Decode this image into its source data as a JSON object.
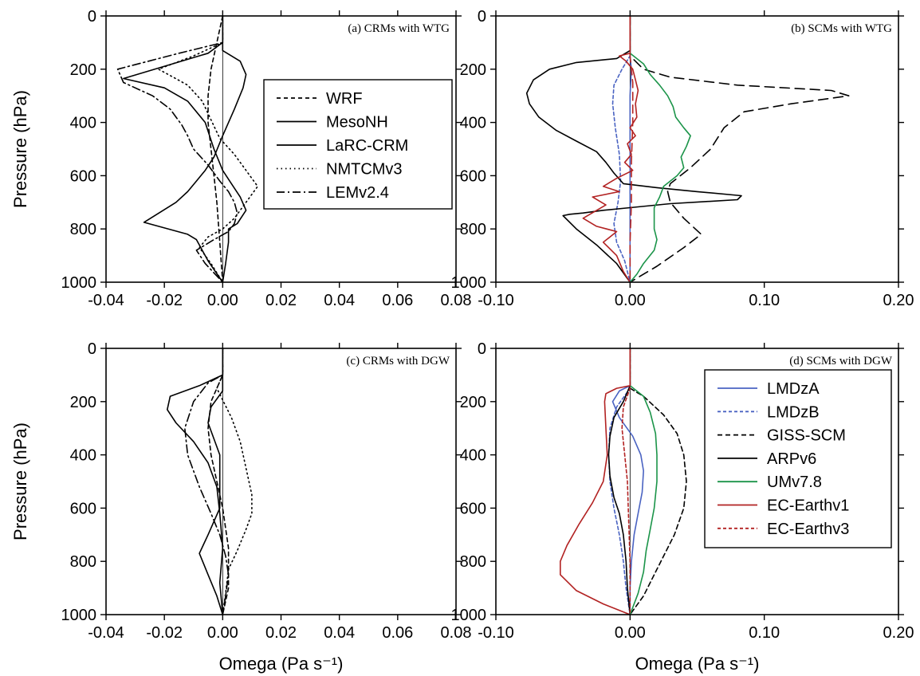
{
  "chart_data": [
    {
      "id": "a",
      "type": "line",
      "title": "(a) CRMs with WTG",
      "xlabel": "",
      "ylabel": "Pressure (hPa)",
      "xlim": [
        -0.04,
        0.08
      ],
      "ylim": [
        0,
        1000
      ],
      "y_inverted": true,
      "xticks": [
        "-0.04",
        "-0.02",
        "0.00",
        "0.02",
        "0.04",
        "0.06",
        "0.08"
      ],
      "yticks": [
        "0",
        "200",
        "400",
        "600",
        "800",
        "1000"
      ],
      "legend": "inside, right",
      "series": [
        {
          "name": "WRF",
          "color": "#000000",
          "dash": "5,4",
          "x": [
            0.0,
            -0.002,
            -0.004,
            -0.005,
            -0.005,
            -0.004,
            -0.003,
            -0.002,
            -0.001,
            0.0
          ],
          "y": [
            0,
            100,
            200,
            300,
            400,
            500,
            600,
            700,
            850,
            1000
          ]
        },
        {
          "name": "MesoNH",
          "color": "#000000",
          "dash": "",
          "x": [
            0.0,
            0.0,
            0.0,
            0.006,
            0.008,
            0.007,
            0.004,
            0.0,
            -0.003,
            -0.006,
            -0.009,
            -0.012,
            -0.016,
            -0.027,
            -0.012,
            -0.009,
            -0.005,
            0.0
          ],
          "y": [
            0,
            80,
            130,
            170,
            220,
            270,
            350,
            450,
            530,
            580,
            620,
            660,
            700,
            775,
            820,
            840,
            920,
            1000
          ]
        },
        {
          "name": "LaRC-CRM",
          "color": "#000000",
          "dash": "",
          "x": [
            0.0,
            0.0,
            -0.005,
            -0.034,
            -0.02,
            -0.012,
            -0.006,
            -0.003,
            0.0,
            0.003,
            0.006,
            0.008,
            0.005,
            0.002,
            0.002,
            0.001,
            0.0
          ],
          "y": [
            0,
            100,
            140,
            235,
            270,
            320,
            400,
            500,
            580,
            630,
            680,
            730,
            780,
            800,
            850,
            930,
            1000
          ]
        },
        {
          "name": "NMTCMv3",
          "color": "#000000",
          "dash": "1.5,4",
          "x": [
            0.0,
            0.0,
            -0.01,
            -0.022,
            -0.012,
            -0.007,
            -0.004,
            -0.001,
            0.004,
            0.008,
            0.012,
            0.008,
            0.004,
            0.0,
            -0.005,
            -0.008,
            -0.004,
            0.0
          ],
          "y": [
            0,
            100,
            150,
            200,
            260,
            320,
            390,
            460,
            520,
            580,
            640,
            700,
            760,
            800,
            830,
            870,
            930,
            1000
          ]
        },
        {
          "name": "LEMv2.4",
          "color": "#000000",
          "dash": "10,4,2,4",
          "x": [
            0.0,
            0.0,
            -0.015,
            -0.036,
            -0.034,
            -0.024,
            -0.018,
            -0.014,
            -0.012,
            -0.01,
            -0.005,
            -0.001,
            0.002,
            0.004,
            0.005,
            0.004,
            0.002,
            -0.003,
            -0.009,
            -0.006,
            0.0
          ],
          "y": [
            0,
            100,
            140,
            200,
            250,
            300,
            350,
            410,
            450,
            500,
            560,
            620,
            660,
            700,
            740,
            780,
            810,
            840,
            880,
            930,
            1000
          ]
        }
      ]
    },
    {
      "id": "b",
      "type": "line",
      "title": "(b) SCMs with WTG",
      "xlabel": "",
      "ylabel": "",
      "xlim": [
        -0.1,
        0.2
      ],
      "ylim": [
        0,
        1000
      ],
      "y_inverted": true,
      "xticks": [
        "-0.10",
        "0.00",
        "0.10",
        "0.20"
      ],
      "yticks": [
        "0",
        "200",
        "400",
        "600",
        "800",
        "1000"
      ],
      "series": [
        {
          "name": "LMDzA",
          "color": "#4a63c2",
          "dash": "",
          "x": [
            0.0,
            0.0,
            0.001,
            0.0,
            0.0,
            0.0,
            0.0,
            0.0,
            0.0
          ],
          "y": [
            0,
            150,
            200,
            300,
            500,
            700,
            850,
            950,
            1000
          ]
        },
        {
          "name": "LMDzB",
          "color": "#4a63c2",
          "dash": "4,3",
          "x": [
            0.0,
            0.0,
            -0.006,
            -0.012,
            -0.013,
            -0.011,
            -0.008,
            -0.007,
            -0.009,
            -0.012,
            -0.01,
            -0.004,
            0.0
          ],
          "y": [
            0,
            150,
            200,
            260,
            330,
            420,
            520,
            620,
            700,
            780,
            850,
            920,
            1000
          ]
        },
        {
          "name": "GISS-SCM",
          "color": "#000000",
          "dash": "12,7",
          "x": [
            0.0,
            0.0,
            0.01,
            0.03,
            0.08,
            0.15,
            0.163,
            0.12,
            0.085,
            0.07,
            0.06,
            0.045,
            0.03,
            0.028,
            0.03,
            0.04,
            0.053,
            0.04,
            0.02,
            0.0
          ],
          "y": [
            0,
            150,
            200,
            230,
            260,
            280,
            300,
            330,
            360,
            420,
            500,
            570,
            630,
            660,
            700,
            760,
            820,
            870,
            940,
            1000
          ]
        },
        {
          "name": "ARPv6",
          "color": "#000000",
          "dash": "",
          "x": [
            0.0,
            0.0,
            -0.01,
            -0.04,
            -0.06,
            -0.072,
            -0.077,
            -0.075,
            -0.068,
            -0.055,
            -0.04,
            -0.025,
            -0.018,
            -0.012,
            -0.005,
            0.02,
            0.05,
            0.083,
            0.08,
            0.03,
            0.0,
            -0.02,
            -0.035,
            -0.045,
            -0.05,
            -0.04,
            -0.025,
            -0.01,
            0.0
          ],
          "y": [
            0,
            130,
            160,
            175,
            200,
            240,
            290,
            330,
            380,
            430,
            470,
            510,
            550,
            590,
            630,
            645,
            660,
            675,
            690,
            705,
            720,
            730,
            740,
            745,
            750,
            800,
            860,
            930,
            1000
          ]
        },
        {
          "name": "UMv7.8",
          "color": "#1b9449",
          "dash": "",
          "x": [
            0.0,
            0.0,
            0.01,
            0.015,
            0.022,
            0.028,
            0.032,
            0.034,
            0.04,
            0.045,
            0.042,
            0.038,
            0.04,
            0.035,
            0.03,
            0.025,
            0.022,
            0.018,
            0.018,
            0.018,
            0.02,
            0.018,
            0.01,
            0.005,
            0.0
          ],
          "y": [
            0,
            140,
            180,
            220,
            260,
            300,
            340,
            380,
            420,
            450,
            490,
            530,
            570,
            600,
            620,
            640,
            680,
            720,
            760,
            800,
            840,
            880,
            930,
            970,
            1000
          ]
        },
        {
          "name": "EC-Earthv1",
          "color": "#b22222",
          "dash": "",
          "x": [
            0.0,
            0.0,
            -0.008,
            -0.003,
            0.002,
            0.004,
            0.006,
            0.004,
            0.005,
            0.0,
            0.004,
            -0.002,
            0.001,
            -0.004,
            0.002,
            -0.01,
            -0.02,
            -0.008,
            -0.028,
            -0.018,
            -0.035,
            -0.025,
            -0.01,
            -0.015,
            -0.02,
            -0.01,
            -0.005,
            0.0
          ],
          "y": [
            0,
            140,
            150,
            170,
            200,
            240,
            280,
            330,
            380,
            420,
            450,
            480,
            520,
            550,
            580,
            610,
            640,
            660,
            680,
            710,
            760,
            790,
            810,
            830,
            850,
            900,
            960,
            1000
          ]
        },
        {
          "name": "EC-Earthv3",
          "color": "#b22222",
          "dash": "10,6",
          "x": [
            0.0,
            0.0,
            0.002,
            0.002,
            0.001,
            0.001,
            0.0,
            0.0
          ],
          "y": [
            0,
            150,
            250,
            400,
            550,
            700,
            850,
            1000
          ]
        }
      ]
    },
    {
      "id": "c",
      "type": "line",
      "title": "(c) CRMs with DGW",
      "xlabel": "Omega (Pa s⁻¹)",
      "ylabel": "Pressure (hPa)",
      "xlim": [
        -0.04,
        0.08
      ],
      "ylim": [
        0,
        1000
      ],
      "y_inverted": true,
      "xticks": [
        "-0.04",
        "-0.02",
        "0.00",
        "0.02",
        "0.04",
        "0.06",
        "0.08"
      ],
      "yticks": [
        "0",
        "200",
        "400",
        "600",
        "800",
        "1000"
      ],
      "series": [
        {
          "name": "WRF",
          "color": "#000000",
          "dash": "5,4",
          "x": [
            0.0,
            0.0,
            -0.002,
            -0.004,
            -0.005,
            -0.004,
            -0.002,
            0.0,
            0.002,
            0.002,
            0.0
          ],
          "y": [
            0,
            100,
            150,
            200,
            300,
            400,
            500,
            600,
            750,
            900,
            1000
          ]
        },
        {
          "name": "MesoNH",
          "color": "#000000",
          "dash": "",
          "x": [
            0.0,
            0.0,
            0.0,
            -0.004,
            -0.005,
            -0.003,
            -0.001,
            -0.001,
            -0.005,
            -0.008,
            -0.005,
            -0.002,
            0.0
          ],
          "y": [
            0,
            100,
            160,
            220,
            280,
            340,
            400,
            600,
            700,
            770,
            850,
            930,
            1000
          ]
        },
        {
          "name": "LaRC-CRM",
          "color": "#000000",
          "dash": "",
          "x": [
            0.0,
            0.0,
            -0.008,
            -0.018,
            -0.019,
            -0.016,
            -0.01,
            -0.005,
            -0.002,
            -0.001,
            0.0,
            -0.001,
            0.0
          ],
          "y": [
            0,
            100,
            140,
            180,
            230,
            280,
            350,
            430,
            520,
            620,
            750,
            880,
            1000
          ]
        },
        {
          "name": "NMTCMv3",
          "color": "#000000",
          "dash": "1.5,4",
          "x": [
            0.0,
            0.0,
            -0.002,
            0.003,
            0.006,
            0.008,
            0.01,
            0.01,
            0.008,
            0.005,
            0.002,
            0.001,
            0.0
          ],
          "y": [
            0,
            100,
            150,
            260,
            350,
            450,
            550,
            620,
            680,
            760,
            830,
            920,
            1000
          ]
        },
        {
          "name": "LEMv2.4",
          "color": "#000000",
          "dash": "10,4,2,4",
          "x": [
            0.0,
            0.0,
            -0.005,
            -0.01,
            -0.013,
            -0.012,
            -0.008,
            -0.004,
            -0.001,
            0.001,
            0.002,
            0.001,
            0.0
          ],
          "y": [
            0,
            100,
            130,
            200,
            300,
            400,
            520,
            620,
            700,
            780,
            850,
            930,
            1000
          ]
        }
      ]
    },
    {
      "id": "d",
      "type": "line",
      "title": "(d) SCMs with DGW",
      "xlabel": "Omega (Pa s⁻¹)",
      "ylabel": "",
      "xlim": [
        -0.1,
        0.2
      ],
      "ylim": [
        0,
        1000
      ],
      "y_inverted": true,
      "xticks": [
        "-0.10",
        "0.00",
        "0.10",
        "0.20"
      ],
      "yticks": [
        "0",
        "200",
        "400",
        "600",
        "800",
        "1000"
      ],
      "legend": "inside, top-right",
      "series": [
        {
          "name": "LMDzA",
          "color": "#4a63c2",
          "dash": "",
          "x": [
            0.0,
            0.0,
            -0.008,
            -0.013,
            -0.008,
            0.002,
            0.008,
            0.01,
            0.009,
            0.006,
            0.003,
            0.001,
            0.0,
            0.0
          ],
          "y": [
            0,
            140,
            160,
            200,
            260,
            330,
            400,
            460,
            540,
            620,
            700,
            800,
            900,
            1000
          ]
        },
        {
          "name": "LMDzB",
          "color": "#4a63c2",
          "dash": "4,3",
          "x": [
            0.0,
            0.0,
            -0.01,
            -0.015,
            -0.016,
            -0.015,
            -0.012,
            -0.008,
            -0.005,
            -0.003,
            0.0
          ],
          "y": [
            0,
            150,
            220,
            300,
            400,
            500,
            600,
            700,
            800,
            900,
            1000
          ]
        },
        {
          "name": "GISS-SCM",
          "color": "#000000",
          "dash": "6,4",
          "x": [
            0.0,
            0.0,
            0.01,
            0.025,
            0.035,
            0.04,
            0.042,
            0.04,
            0.033,
            0.025,
            0.018,
            0.01,
            0.0
          ],
          "y": [
            0,
            150,
            180,
            250,
            320,
            400,
            500,
            600,
            700,
            780,
            850,
            930,
            1000
          ]
        },
        {
          "name": "ARPv6",
          "color": "#000000",
          "dash": "",
          "x": [
            0.0,
            0.0,
            -0.005,
            -0.012,
            -0.015,
            -0.016,
            -0.015,
            -0.012,
            -0.008,
            -0.005,
            -0.003,
            -0.002,
            0.0
          ],
          "y": [
            0,
            140,
            200,
            260,
            330,
            400,
            480,
            560,
            620,
            700,
            800,
            900,
            1000
          ]
        },
        {
          "name": "UMv7.8",
          "color": "#1b9449",
          "dash": "",
          "x": [
            0.0,
            0.0,
            0.01,
            0.015,
            0.019,
            0.02,
            0.02,
            0.018,
            0.015,
            0.012,
            0.01,
            0.006,
            0.0
          ],
          "y": [
            0,
            140,
            180,
            240,
            320,
            400,
            500,
            600,
            680,
            760,
            840,
            920,
            1000
          ]
        },
        {
          "name": "EC-Earthv1",
          "color": "#b22222",
          "dash": "",
          "x": [
            0.0,
            0.0,
            -0.01,
            -0.018,
            -0.019,
            -0.018,
            -0.017,
            -0.02,
            -0.028,
            -0.038,
            -0.047,
            -0.052,
            -0.052,
            -0.04,
            -0.02,
            0.0
          ],
          "y": [
            0,
            140,
            150,
            170,
            200,
            300,
            400,
            500,
            580,
            660,
            740,
            800,
            850,
            910,
            960,
            1000
          ]
        },
        {
          "name": "EC-Earthv3",
          "color": "#b22222",
          "dash": "4,3",
          "x": [
            0.0,
            0.0,
            -0.005,
            -0.006,
            -0.004,
            -0.002,
            -0.001,
            0.0,
            0.0
          ],
          "y": [
            0,
            150,
            220,
            300,
            400,
            500,
            650,
            800,
            1000
          ]
        }
      ]
    }
  ]
}
